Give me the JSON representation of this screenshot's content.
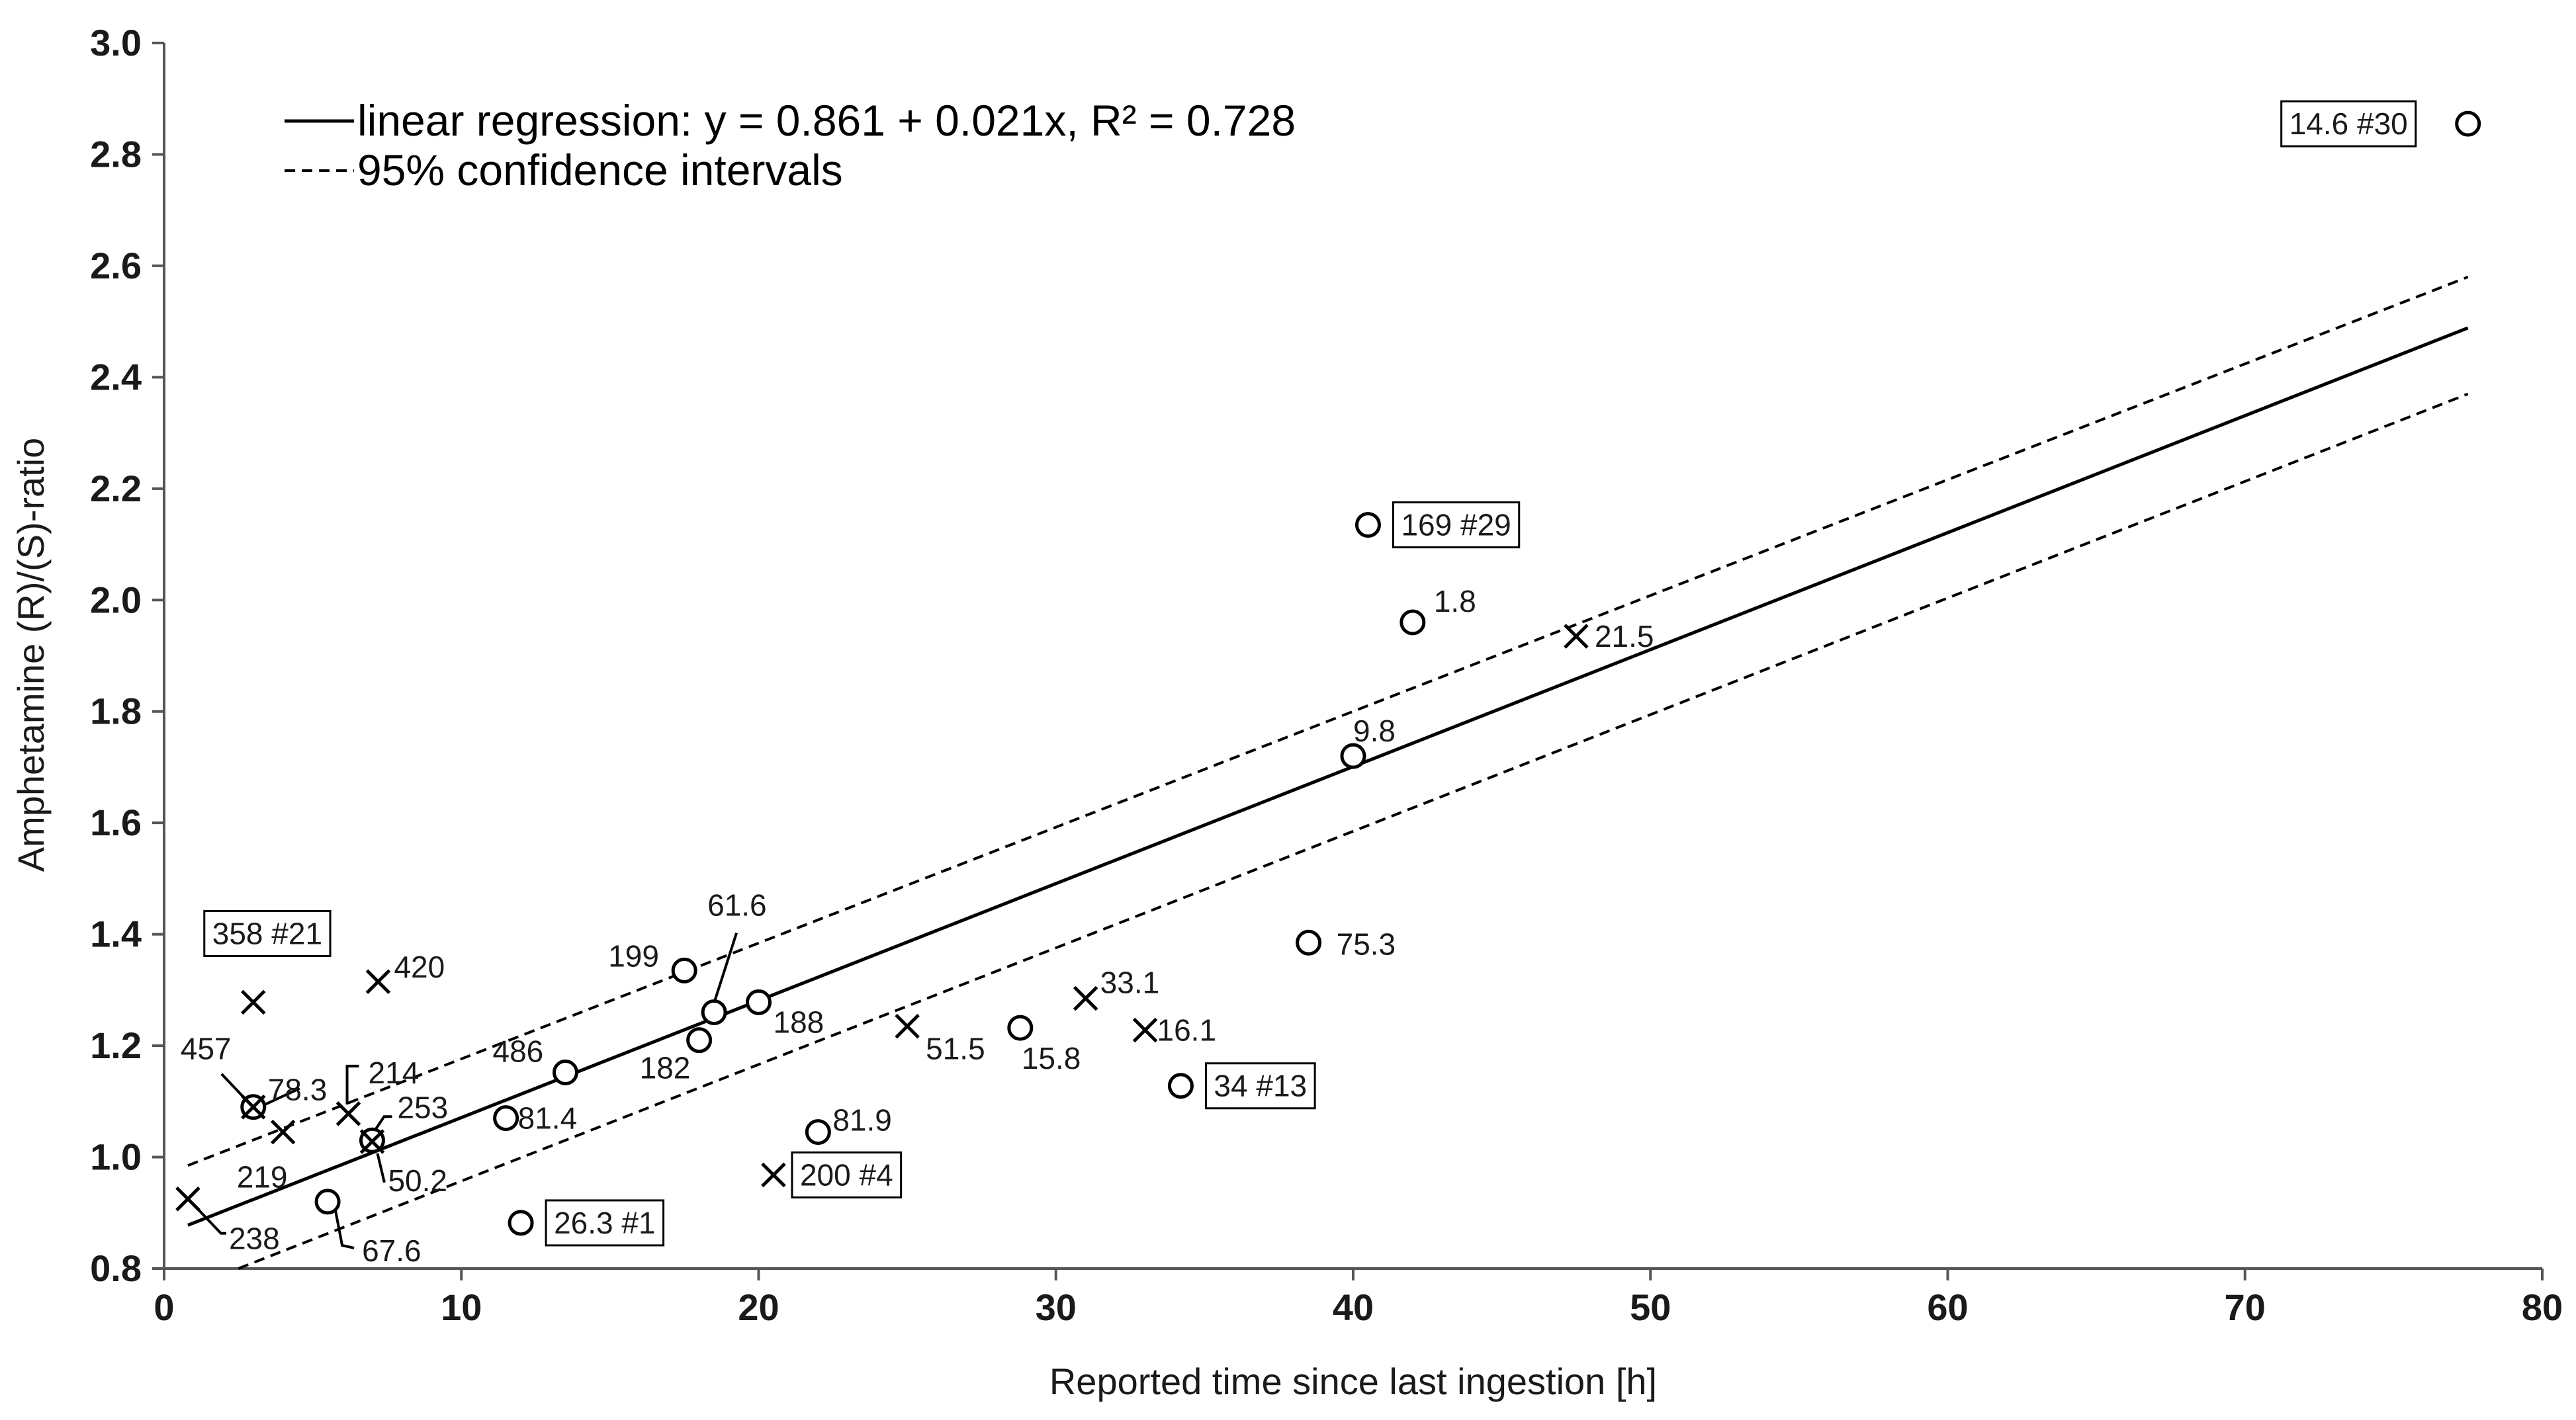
{
  "chart_data": {
    "type": "scatter",
    "xlabel": "Reported time since last ingestion [h]",
    "ylabel": "Amphetamine (R)/(S)-ratio",
    "xlim": [
      0,
      80
    ],
    "ylim": [
      0.8,
      3.0
    ],
    "x_ticks": [
      "0",
      "10",
      "20",
      "30",
      "40",
      "50",
      "60",
      "70",
      "80"
    ],
    "y_ticks": [
      "0.8",
      "1.0",
      "1.2",
      "1.4",
      "1.6",
      "1.8",
      "2.0",
      "2.2",
      "2.4",
      "2.6",
      "2.8",
      "3.0"
    ],
    "grid": false,
    "legend": [
      {
        "label": "linear regression: y = 0.861 + 0.021x, R² = 0.728",
        "style": "solid"
      },
      {
        "label": "95% confidence intervals",
        "style": "dashed"
      }
    ],
    "regression": {
      "intercept": 0.861,
      "slope": 0.021,
      "x_range": [
        0.8,
        77.5
      ]
    },
    "confidence_upper": {
      "x": [
        0.8,
        77.5
      ],
      "y": [
        0.985,
        2.58
      ]
    },
    "confidence_lower": {
      "x": [
        2.5,
        77.5
      ],
      "y": [
        0.8,
        2.37
      ]
    },
    "series": [
      {
        "name": "circle",
        "marker": "o",
        "points": [
          {
            "x": 77.5,
            "y": 2.855,
            "label": "14.6 #30",
            "boxed": true
          },
          {
            "x": 40.5,
            "y": 2.135,
            "label": "169 #29",
            "boxed": true
          },
          {
            "x": 42.0,
            "y": 1.96,
            "label": "1.8",
            "boxed": false
          },
          {
            "x": 40.0,
            "y": 1.72,
            "label": "9.8",
            "boxed": false
          },
          {
            "x": 38.5,
            "y": 1.385,
            "label": "75.3",
            "boxed": false
          },
          {
            "x": 34.2,
            "y": 1.128,
            "label": "34 #13",
            "boxed": true
          },
          {
            "x": 28.8,
            "y": 1.232,
            "label": "15.8",
            "boxed": false
          },
          {
            "x": 22.0,
            "y": 1.045,
            "label": "81.9",
            "boxed": false
          },
          {
            "x": 20.0,
            "y": 1.278,
            "label": "188",
            "boxed": false
          },
          {
            "x": 18.5,
            "y": 1.26,
            "label": "61.6",
            "boxed": false
          },
          {
            "x": 18.0,
            "y": 1.21,
            "label": "182",
            "boxed": false
          },
          {
            "x": 17.5,
            "y": 1.335,
            "label": "199",
            "boxed": false
          },
          {
            "x": 13.5,
            "y": 1.152,
            "label": "486",
            "boxed": false
          },
          {
            "x": 11.5,
            "y": 1.07,
            "label": "81.4",
            "boxed": false
          },
          {
            "x": 12.0,
            "y": 0.882,
            "label": "26.3 #1",
            "boxed": true
          },
          {
            "x": 7.0,
            "y": 1.03,
            "label": "253",
            "boxed": false
          },
          {
            "x": 5.5,
            "y": 0.92,
            "label": "67.6",
            "boxed": false
          },
          {
            "x": 3.0,
            "y": 1.09,
            "label": "78.3",
            "boxed": false
          }
        ]
      },
      {
        "name": "cross",
        "marker": "x",
        "points": [
          {
            "x": 47.5,
            "y": 1.935,
            "label": "21.5",
            "boxed": false
          },
          {
            "x": 33.0,
            "y": 1.228,
            "label": "16.1",
            "boxed": false
          },
          {
            "x": 31.0,
            "y": 1.285,
            "label": "33.1",
            "boxed": false
          },
          {
            "x": 25.0,
            "y": 1.235,
            "label": "51.5",
            "boxed": false
          },
          {
            "x": 20.5,
            "y": 0.968,
            "label": "200 #4",
            "boxed": true
          },
          {
            "x": 7.2,
            "y": 1.315,
            "label": "420",
            "boxed": false
          },
          {
            "x": 6.2,
            "y": 1.078,
            "label": "214",
            "boxed": false
          },
          {
            "x": 7.0,
            "y": 1.028,
            "label": "50.2",
            "boxed": false
          },
          {
            "x": 4.0,
            "y": 1.045,
            "label": "219",
            "boxed": false
          },
          {
            "x": 3.0,
            "y": 1.09,
            "label": "457",
            "boxed": false
          },
          {
            "x": 3.0,
            "y": 1.278,
            "label": "358 #21",
            "boxed": true
          },
          {
            "x": 0.8,
            "y": 0.925,
            "label": "238",
            "boxed": false
          }
        ]
      }
    ]
  }
}
